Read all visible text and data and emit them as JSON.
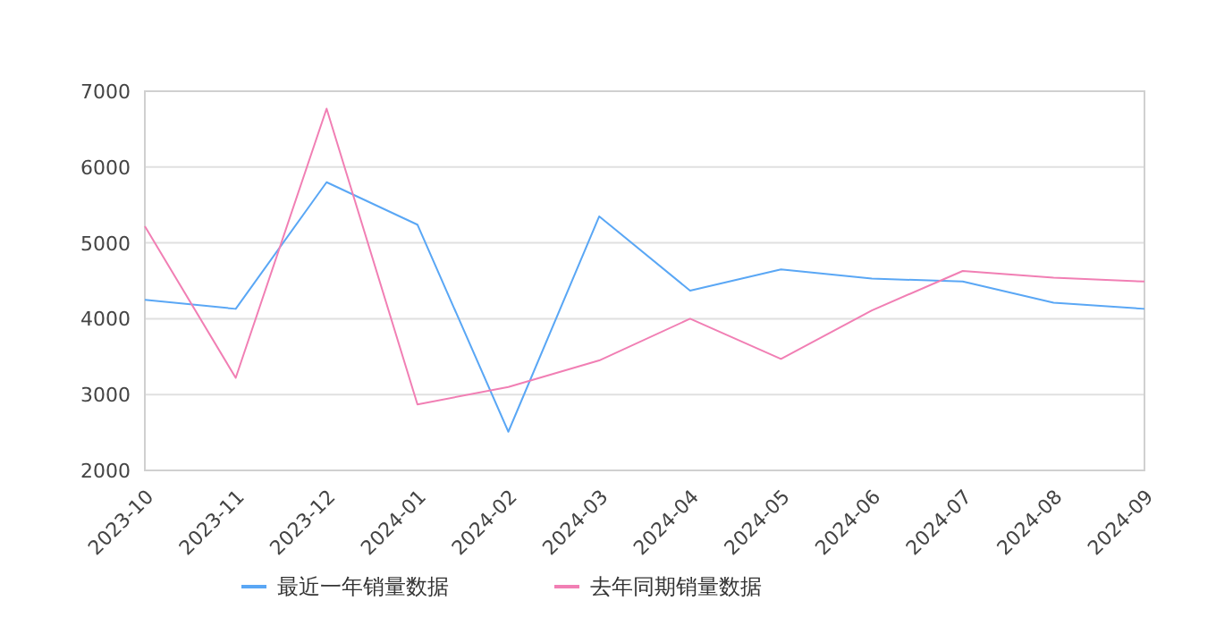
{
  "chart_data": {
    "type": "line",
    "categories": [
      "2023-10",
      "2023-11",
      "2023-12",
      "2024-01",
      "2024-02",
      "2024-03",
      "2024-04",
      "2024-05",
      "2024-06",
      "2024-07",
      "2024-08",
      "2024-09"
    ],
    "series": [
      {
        "name": "最近一年销量数据",
        "color": "#5aa7f5",
        "values": [
          4250,
          4130,
          5800,
          5240,
          2510,
          5350,
          4370,
          4650,
          4530,
          4490,
          4210,
          4130
        ]
      },
      {
        "name": "去年同期销量数据",
        "color": "#f17fb4",
        "values": [
          5220,
          3220,
          6770,
          2870,
          3100,
          3450,
          4000,
          3470,
          4110,
          4630,
          4540,
          4490
        ]
      }
    ],
    "ylim": [
      2000,
      7000
    ],
    "yticks": [
      2000,
      3000,
      4000,
      5000,
      6000,
      7000
    ],
    "grid": "y",
    "legend": "bottom",
    "marker": "none",
    "line_style": "solid"
  }
}
